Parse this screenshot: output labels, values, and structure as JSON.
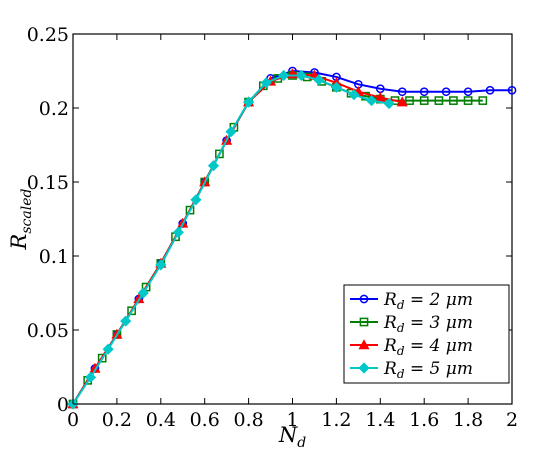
{
  "chart_data": {
    "type": "line",
    "xlabel": {
      "main": "N",
      "sub": "d"
    },
    "ylabel": {
      "main": "R",
      "sub": "scaled"
    },
    "xlim": [
      0,
      2
    ],
    "ylim": [
      0,
      0.25
    ],
    "xticks": [
      "0",
      "0.2",
      "0.4",
      "0.6",
      "0.8",
      "1",
      "1.2",
      "1.4",
      "1.6",
      "1.8",
      "2"
    ],
    "yticks": [
      "0",
      "0.05",
      "0.1",
      "0.15",
      "0.2",
      "0.25"
    ],
    "grid": false,
    "legend_position": "bottom-right",
    "series": [
      {
        "label": {
          "pre": "R",
          "sub": "d",
          "post": " = 2 μm"
        },
        "color": "#0000ff",
        "marker": "circle",
        "x": [
          0,
          0.1,
          0.2,
          0.3,
          0.4,
          0.5,
          0.6,
          0.7,
          0.8,
          0.9,
          1.0,
          1.1,
          1.2,
          1.3,
          1.4,
          1.5,
          1.6,
          1.7,
          1.8,
          1.9,
          2.0
        ],
        "y": [
          0,
          0.024,
          0.047,
          0.071,
          0.095,
          0.122,
          0.15,
          0.178,
          0.204,
          0.22,
          0.225,
          0.224,
          0.221,
          0.216,
          0.213,
          0.211,
          0.211,
          0.211,
          0.211,
          0.212,
          0.212
        ]
      },
      {
        "label": {
          "pre": "R",
          "sub": "d",
          "post": " = 3 μm"
        },
        "color": "#008000",
        "marker": "square",
        "x": [
          0,
          0.067,
          0.133,
          0.2,
          0.267,
          0.333,
          0.4,
          0.467,
          0.533,
          0.6,
          0.667,
          0.733,
          0.8,
          0.867,
          0.933,
          1.0,
          1.067,
          1.133,
          1.2,
          1.267,
          1.333,
          1.4,
          1.467,
          1.533,
          1.6,
          1.667,
          1.733,
          1.8,
          1.867
        ],
        "y": [
          0,
          0.016,
          0.031,
          0.047,
          0.063,
          0.079,
          0.095,
          0.113,
          0.131,
          0.15,
          0.169,
          0.187,
          0.204,
          0.215,
          0.22,
          0.222,
          0.221,
          0.218,
          0.214,
          0.21,
          0.208,
          0.206,
          0.205,
          0.205,
          0.205,
          0.205,
          0.205,
          0.205,
          0.205
        ]
      },
      {
        "label": {
          "pre": "R",
          "sub": "d",
          "post": " = 4 μm"
        },
        "color": "#ff0000",
        "marker": "triangle",
        "x": [
          0,
          0.1,
          0.2,
          0.3,
          0.4,
          0.5,
          0.6,
          0.7,
          0.8,
          0.9,
          1.0,
          1.1,
          1.2,
          1.3,
          1.4,
          1.5
        ],
        "y": [
          0,
          0.024,
          0.047,
          0.071,
          0.095,
          0.122,
          0.15,
          0.178,
          0.204,
          0.218,
          0.223,
          0.222,
          0.217,
          0.211,
          0.207,
          0.204
        ]
      },
      {
        "label": {
          "pre": "R",
          "sub": "d",
          "post": " = 5 μm"
        },
        "color": "#00c8c8",
        "marker": "diamond",
        "x": [
          0,
          0.08,
          0.16,
          0.24,
          0.32,
          0.4,
          0.48,
          0.56,
          0.64,
          0.72,
          0.8,
          0.88,
          0.96,
          1.04,
          1.12,
          1.2,
          1.28,
          1.36,
          1.44
        ],
        "y": [
          0,
          0.018,
          0.037,
          0.056,
          0.075,
          0.094,
          0.116,
          0.138,
          0.161,
          0.184,
          0.204,
          0.217,
          0.222,
          0.222,
          0.219,
          0.214,
          0.209,
          0.205,
          0.203
        ]
      }
    ]
  }
}
